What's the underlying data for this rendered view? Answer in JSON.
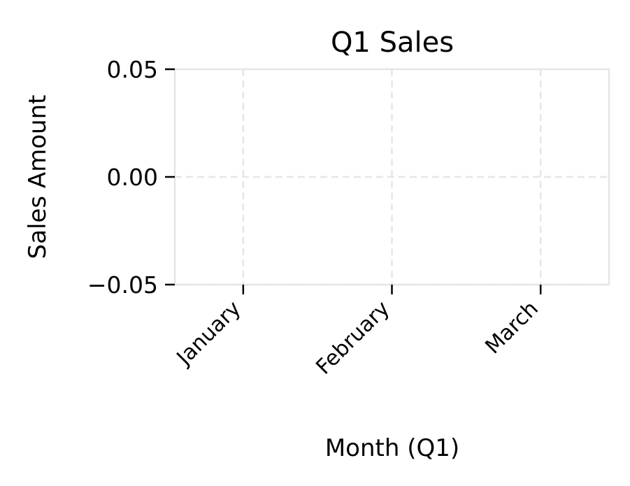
{
  "chart_data": {
    "type": "bar",
    "title": "Q1 Sales",
    "xlabel": "Month (Q1)",
    "ylabel": "Sales Amount",
    "categories": [
      "January",
      "February",
      "March"
    ],
    "series": [
      {
        "values": [
          0,
          0,
          0
        ]
      }
    ],
    "ylim": [
      -0.05,
      0.05
    ],
    "yticks": [
      -0.05,
      0.0,
      0.05
    ],
    "ytick_labels": [
      "−0.05",
      "0.00",
      "0.05"
    ],
    "grid": true,
    "grid_style": "dashed",
    "legend": "none",
    "colors": {
      "spine": "#e6e6e6",
      "grid": "#e6e6e6",
      "tick": "#000000",
      "text": "#000000"
    }
  }
}
